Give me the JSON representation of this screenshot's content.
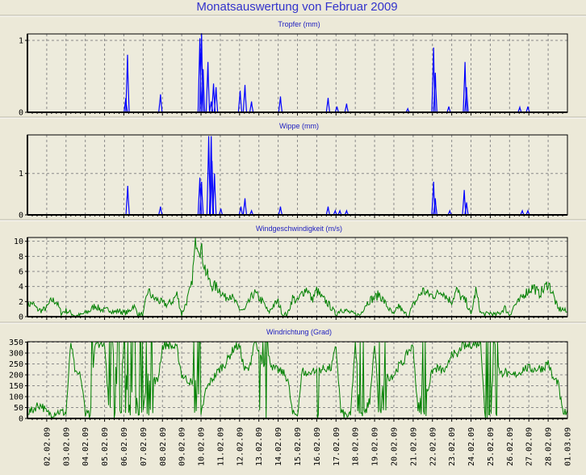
{
  "title": "Monatsauswertung von Februar 2009",
  "chart_data": [
    {
      "type": "bar",
      "title": "Tropfer (mm)",
      "x_unit": "days since 01.02.09 00:00",
      "ylim": [
        0,
        1.09
      ],
      "yticks": [
        "0",
        "1"
      ],
      "ytick_values": [
        0,
        1
      ],
      "color": "#0000FF",
      "peaks": [
        [
          5.1,
          0.2
        ],
        [
          5.19,
          0.8
        ],
        [
          6.9,
          0.25
        ],
        [
          8.94,
          1.03
        ],
        [
          9.03,
          1.1
        ],
        [
          9.11,
          0.6
        ],
        [
          9.36,
          0.7
        ],
        [
          9.53,
          0.15
        ],
        [
          9.65,
          0.4
        ],
        [
          9.78,
          0.35
        ],
        [
          11.03,
          0.3
        ],
        [
          11.28,
          0.38
        ],
        [
          11.62,
          0.15
        ],
        [
          13.12,
          0.22
        ],
        [
          15.59,
          0.2
        ],
        [
          16.05,
          0.08
        ],
        [
          16.55,
          0.12
        ],
        [
          19.72,
          0.05
        ],
        [
          21.06,
          0.9
        ],
        [
          21.15,
          0.55
        ],
        [
          21.85,
          0.08
        ],
        [
          22.69,
          0.7
        ],
        [
          22.77,
          0.35
        ],
        [
          25.53,
          0.07
        ],
        [
          25.95,
          0.08
        ]
      ]
    },
    {
      "type": "bar",
      "title": "Wippe (mm)",
      "x_unit": "days since 01.02.09 00:00",
      "ylim": [
        0,
        1.93
      ],
      "yticks": [
        "0",
        "1"
      ],
      "ytick_values": [
        0,
        1
      ],
      "color": "#0000FF",
      "peaks": [
        [
          5.2,
          0.7
        ],
        [
          6.9,
          0.2
        ],
        [
          8.94,
          0.9
        ],
        [
          9.03,
          0.8
        ],
        [
          9.4,
          1.9
        ],
        [
          9.53,
          1.9
        ],
        [
          9.57,
          1.3
        ],
        [
          9.7,
          1.0
        ],
        [
          10.03,
          0.15
        ],
        [
          11.07,
          0.2
        ],
        [
          11.28,
          0.4
        ],
        [
          11.62,
          0.1
        ],
        [
          13.12,
          0.2
        ],
        [
          15.59,
          0.2
        ],
        [
          15.96,
          0.1
        ],
        [
          16.2,
          0.1
        ],
        [
          16.55,
          0.1
        ],
        [
          21.06,
          0.8
        ],
        [
          21.15,
          0.4
        ],
        [
          21.9,
          0.1
        ],
        [
          22.65,
          0.6
        ],
        [
          22.77,
          0.3
        ],
        [
          25.66,
          0.1
        ],
        [
          25.95,
          0.1
        ]
      ]
    },
    {
      "type": "line",
      "title": "Windgeschwindigkeit (m/s)",
      "x_unit": "values every 6 hours from 01.02.09 00:00",
      "ylim": [
        0,
        10.5
      ],
      "yticks": [
        "0",
        "2",
        "4",
        "6",
        "8",
        "10"
      ],
      "ytick_values": [
        0,
        2,
        4,
        6,
        8,
        10
      ],
      "color": "#008000",
      "values": [
        1.5,
        1.8,
        1.0,
        0.8,
        1.2,
        2.2,
        2.0,
        0.5,
        0.8,
        0.5,
        0.1,
        0.2,
        0.5,
        0.8,
        1.5,
        1.0,
        0.8,
        1.0,
        0.6,
        0.8,
        0.5,
        0.6,
        1.5,
        0.3,
        0.3,
        3.5,
        2.5,
        2.2,
        1.8,
        1.6,
        2.0,
        3.0,
        0.3,
        2.0,
        4.0,
        10.5,
        9.0,
        6.0,
        4.2,
        4.0,
        3.5,
        2.5,
        3.0,
        2.0,
        1.0,
        0.8,
        2.0,
        3.2,
        2.5,
        1.8,
        0.5,
        1.5,
        2.0,
        0.2,
        0.4,
        2.5,
        2.0,
        3.2,
        3.8,
        2.2,
        3.5,
        2.5,
        2.0,
        1.2,
        0.3,
        1.0,
        0.8,
        0.5,
        0.3,
        0.2,
        1.5,
        2.2,
        2.5,
        3.0,
        2.0,
        1.0,
        0.2,
        1.5,
        0.5,
        0.2,
        1.5,
        2.5,
        3.5,
        3.0,
        2.8,
        3.0,
        3.5,
        2.5,
        2.0,
        3.5,
        2.5,
        2.0,
        0.2,
        3.5,
        0.5,
        0.3,
        0.5,
        0.2,
        0.5,
        1.2,
        0.2,
        1.5,
        2.0,
        3.0,
        3.5,
        4.0,
        3.0,
        3.5,
        4.5,
        3.0,
        1.0,
        1.0,
        0.5
      ]
    },
    {
      "type": "line",
      "title": "Windrichtung (Grad)",
      "x_unit": "values every 6 hours from 01.02.09 00:00",
      "ylim": [
        0,
        352
      ],
      "yticks": [
        "0",
        "50",
        "100",
        "150",
        "200",
        "250",
        "300",
        "350"
      ],
      "ytick_values": [
        0,
        50,
        100,
        150,
        200,
        250,
        300,
        350
      ],
      "color": "#008000",
      "values": [
        30,
        35,
        60,
        60,
        25,
        20,
        30,
        30,
        25,
        350,
        200,
        200,
        30,
        20,
        350,
        340,
        350,
        0,
        350,
        0,
        350,
        20,
        200,
        20,
        30,
        200,
        180,
        170,
        330,
        340,
        330,
        320,
        200,
        180,
        165,
        200,
        10,
        130,
        170,
        200,
        230,
        250,
        290,
        330,
        330,
        225,
        225,
        350,
        300,
        250,
        280,
        230,
        220,
        210,
        180,
        20,
        20,
        220,
        200,
        220,
        225,
        225,
        230,
        230,
        330,
        30,
        15,
        10,
        350,
        20,
        40,
        80,
        350,
        10,
        190,
        190,
        200,
        240,
        260,
        310,
        330,
        30,
        200,
        130,
        220,
        230,
        220,
        220,
        310,
        280,
        330,
        330,
        340,
        340,
        350,
        0,
        20,
        350,
        200,
        220,
        190,
        200,
        210,
        230,
        230,
        225,
        230,
        230,
        260,
        180,
        170,
        30,
        20
      ],
      "wrap_intervals": [
        [
          3,
          3.4
        ],
        [
          4.2,
          6.5
        ],
        [
          8.5,
          9.1
        ],
        [
          11.8,
          12.5
        ],
        [
          14.9,
          15.1
        ],
        [
          17,
          17.6
        ],
        [
          18,
          18.6
        ],
        [
          20.3,
          20.7
        ],
        [
          23.7,
          24.4
        ]
      ]
    }
  ],
  "x_labels": [
    "02.02.09",
    "03.02.09",
    "04.02.09",
    "05.02.09",
    "06.02.09",
    "07.02.09",
    "08.02.09",
    "09.02.09",
    "10.02.09",
    "11.02.09",
    "12.02.09",
    "13.02.09",
    "14.02.09",
    "15.02.09",
    "16.02.09",
    "17.02.09",
    "18.02.09",
    "19.02.09",
    "20.02.09",
    "21.02.09",
    "22.02.09",
    "23.02.09",
    "24.02.09",
    "25.02.09",
    "26.02.09",
    "27.02.09",
    "28.02.09",
    "01.03.09"
  ]
}
